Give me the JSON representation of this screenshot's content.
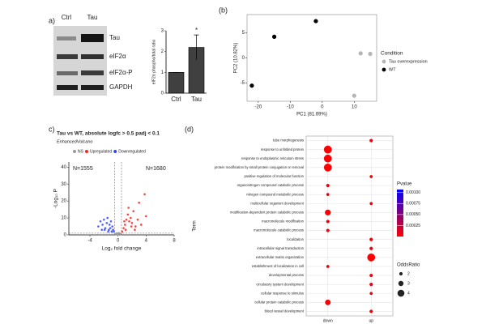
{
  "panel_labels": [
    "a)",
    "(b)",
    "c)",
    "(d)"
  ],
  "blot": {
    "columns": [
      "Ctrl",
      "Tau"
    ],
    "rows": [
      "Tau",
      "eIF2α",
      "eIF2α-P",
      "GAPDH"
    ]
  },
  "chart_data": [
    {
      "type": "bar",
      "categories": [
        "Ctrl",
        "Tau"
      ],
      "values": [
        1,
        2.2
      ],
      "errors": [
        0,
        0.6
      ],
      "color": "#404040",
      "ylabel": "eIF2α phospho/total ratio",
      "ylim": [
        0,
        3
      ],
      "yticks": [
        0,
        1,
        2,
        3
      ],
      "annotation": "*"
    },
    {
      "type": "scatter",
      "xlabel": "PC1 (81.69%)",
      "ylabel": "PC2 (10.82%)",
      "xlim": [
        -23.5,
        17
      ],
      "ylim": [
        -8.6,
        8.6
      ],
      "xticks": [
        -20,
        -10,
        0,
        10
      ],
      "yticks": [
        -5,
        0,
        5
      ],
      "legend_title": "Condition",
      "legend": "right",
      "series": [
        {
          "name": "Tau overexpression",
          "color": "#b5b5b5",
          "x": [
            10,
            12,
            15
          ],
          "values": [
            -7.5,
            0.9,
            0.8
          ]
        },
        {
          "name": "WT",
          "color": "#000000",
          "x": [
            -22,
            -15,
            -2
          ],
          "values": [
            -5.5,
            4.2,
            7.3
          ]
        }
      ]
    },
    {
      "type": "volcano",
      "title": "Tau vs WT, absolute logfc > 0.5 padj < 0.1",
      "subtitle": "EnhancedVolcano",
      "xlabel": "Log₂ fold change",
      "ylabel": "-Log₁₀ P",
      "xlim": [
        -7,
        8
      ],
      "ylim": [
        0,
        43
      ],
      "xticks": [
        -4,
        0,
        4,
        8
      ],
      "yticks": [
        0,
        10,
        20,
        30,
        40
      ],
      "vlines": [
        -0.5,
        0.5
      ],
      "hlines": [
        1
      ],
      "annotations": [
        "N=1555",
        "N=1680"
      ],
      "legend": "top",
      "series": [
        {
          "name": "NS",
          "color": "#999999",
          "x": [
            -0.4,
            -0.2,
            0,
            0.2,
            0.4,
            -0.3,
            0.3,
            0.1
          ],
          "values": [
            0.5,
            1,
            0.3,
            0.8,
            0.4,
            0.2,
            0.6,
            1.2
          ]
        },
        {
          "name": "Upregulated",
          "color": "#ff2020",
          "x": [
            0.6,
            0.8,
            1,
            1.2,
            1.4,
            1.6,
            1.8,
            2,
            2.2,
            2.5,
            2.8,
            3,
            3.3,
            3.8,
            4,
            1.1,
            1.5,
            2.4,
            0.9,
            1.9
          ],
          "values": [
            2,
            4,
            6,
            9,
            12,
            8,
            10,
            7,
            14,
            5,
            9,
            19,
            6,
            24,
            11,
            3,
            16,
            3,
            8,
            5
          ]
        },
        {
          "name": "Downregulated",
          "color": "#3344ff",
          "x": [
            -2.8,
            -2.5,
            -2.2,
            -2,
            -1.8,
            -1.6,
            -1.5,
            -1.3,
            -1.2,
            -1,
            -0.9,
            -0.8,
            -0.7,
            -0.6,
            -1.9,
            -1.4,
            -2.3,
            -1.1
          ],
          "values": [
            5,
            8,
            6,
            9,
            4,
            7,
            10,
            3,
            6,
            8,
            2,
            5,
            3,
            2,
            3,
            2,
            3,
            4
          ]
        }
      ]
    },
    {
      "type": "dotplot",
      "ylabel": "Term",
      "categories": [
        "down",
        "up"
      ],
      "terms": [
        "tube morphogenesis",
        "response to unfolded protein",
        "response to endoplasmic reticulum stress",
        "protein modification by small protein conjugation or removal",
        "positive regulation of molecular function",
        "organonitrogen compound catabolic process",
        "nitrogen compound metabolic process",
        "multicellular organism development",
        "modification-dependent protein catabolic process",
        "macromolecule modification",
        "macromolecule catabolic process",
        "localization",
        "intracellular signal transduction",
        "extracellular matrix organization",
        "establishment of localization in cell",
        "developmental process",
        "circulatory system development",
        "cellular response to stimulus",
        "cellular protein catabolic process",
        "blood vessel development"
      ],
      "x": [
        "up",
        "down",
        "down",
        "down",
        "up",
        "down",
        "down",
        "up",
        "down",
        "down",
        "down",
        "up",
        "up",
        "up",
        "down",
        "up",
        "up",
        "up",
        "down",
        "up"
      ],
      "pvalues": [
        4e-05,
        1e-05,
        1e-05,
        1e-05,
        5e-05,
        3e-05,
        6e-05,
        4e-05,
        2e-05,
        5e-05,
        3e-05,
        3e-05,
        5e-05,
        1e-05,
        6e-05,
        3e-05,
        4e-05,
        6e-05,
        2e-05,
        4e-05
      ],
      "odds_ratios": [
        2,
        4.5,
        4.5,
        4.5,
        1.8,
        2,
        1.8,
        1.8,
        3.4,
        2,
        2,
        2,
        2,
        4.5,
        1.8,
        2,
        2,
        1.8,
        3.2,
        2
      ],
      "color_low": "#ff0000",
      "color_high": "#0000ff",
      "legend_title": "Pvalue",
      "clim": [
        0,
        0.00107
      ],
      "cticks": [
        {
          "value": 0.001,
          "label": "0.00100"
        },
        {
          "value": 0.00075,
          "label": "0.00075"
        },
        {
          "value": 0.0005,
          "label": "0.00050"
        },
        {
          "value": 0.00025,
          "label": "0.00025"
        }
      ],
      "size_title": "OddsRatio",
      "size_ticks": [
        2,
        3,
        4
      ]
    }
  ]
}
